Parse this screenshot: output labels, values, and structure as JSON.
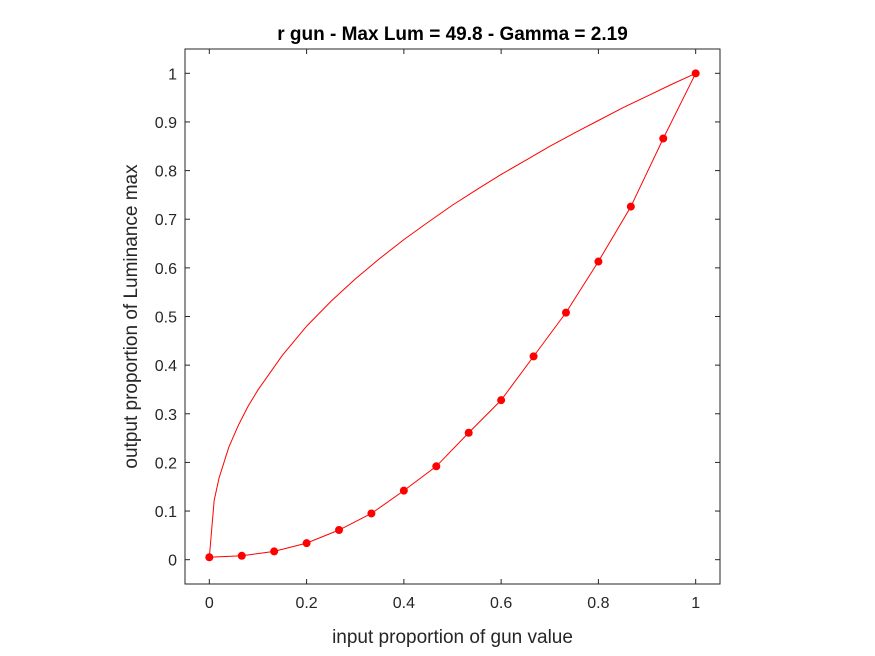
{
  "chart_data": {
    "type": "line",
    "title": "r gun - Max Lum = 49.8 - Gamma = 2.19",
    "xlabel": "input proportion of gun value",
    "ylabel": "output proportion of Luminance max",
    "xlim": [
      -0.05,
      1.05
    ],
    "ylim": [
      -0.05,
      1.05
    ],
    "xticks": [
      0,
      0.2,
      0.4,
      0.6,
      0.8,
      1
    ],
    "xtick_labels": [
      "0",
      "0.2",
      "0.4",
      "0.6",
      "0.8",
      "1"
    ],
    "yticks": [
      0,
      0.1,
      0.2,
      0.3,
      0.4,
      0.5,
      0.6,
      0.7,
      0.8,
      0.9,
      1
    ],
    "ytick_labels": [
      "0",
      "0.1",
      "0.2",
      "0.3",
      "0.4",
      "0.5",
      "0.6",
      "0.7",
      "0.8",
      "0.9",
      "1"
    ],
    "grid": false,
    "box": true,
    "color": "#ff0000",
    "series": [
      {
        "style": "line-markers",
        "x": [
          0,
          0.0667,
          0.1333,
          0.2,
          0.2667,
          0.3333,
          0.4,
          0.4667,
          0.5333,
          0.6,
          0.6667,
          0.7333,
          0.8,
          0.8667,
          0.9333,
          1
        ],
        "y": [
          0.005,
          0.008,
          0.017,
          0.034,
          0.061,
          0.095,
          0.142,
          0.192,
          0.261,
          0.328,
          0.418,
          0.508,
          0.613,
          0.726,
          0.866,
          1.0
        ]
      },
      {
        "style": "line",
        "x": [
          0,
          0.01,
          0.02,
          0.04,
          0.06,
          0.08,
          0.1,
          0.15,
          0.2,
          0.25,
          0.3,
          0.35,
          0.4,
          0.45,
          0.5,
          0.55,
          0.6,
          0.65,
          0.7,
          0.75,
          0.8,
          0.85,
          0.9,
          0.95,
          1
        ],
        "y": [
          0.005,
          0.122,
          0.168,
          0.231,
          0.277,
          0.316,
          0.349,
          0.42,
          0.48,
          0.531,
          0.577,
          0.619,
          0.658,
          0.694,
          0.729,
          0.761,
          0.792,
          0.821,
          0.85,
          0.877,
          0.903,
          0.929,
          0.953,
          0.977,
          1.0
        ]
      }
    ]
  }
}
